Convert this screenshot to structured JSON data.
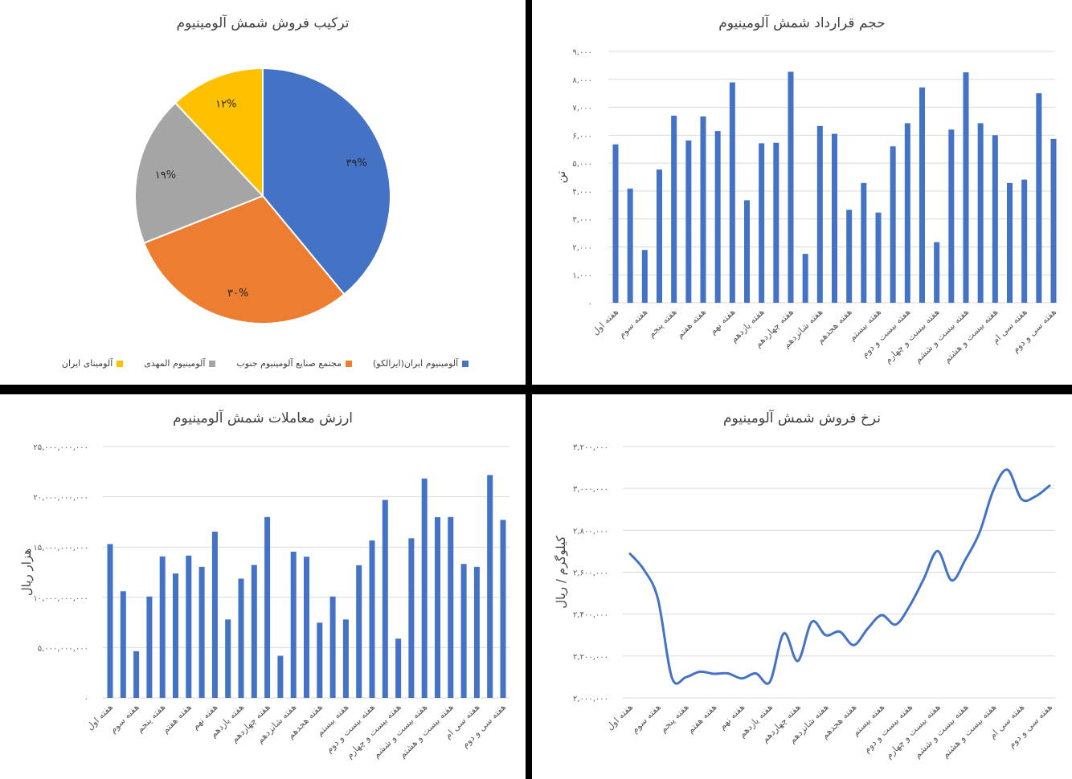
{
  "colors": {
    "bar": "#4472C4",
    "grid": "#D9D9D9",
    "text": "#595959",
    "title": "#404040",
    "background": "#000000",
    "panel": "#FFFFFF"
  },
  "chart_data": [
    {
      "id": "pie",
      "type": "pie",
      "title": "ترکیب فروش شمش آلومینیوم",
      "legend_position": "bottom",
      "slices": [
        {
          "name": "آلومینیوم ایران(ایرالکو)",
          "value": 39,
          "label": "۳۹%",
          "color": "#4472C4"
        },
        {
          "name": "مجتمع صنایع آلومینیوم جنوب",
          "value": 30,
          "label": "۳۰%",
          "color": "#ED7D31"
        },
        {
          "name": "آلومینیوم المهدی",
          "value": 19,
          "label": "۱۹%",
          "color": "#A5A5A5"
        },
        {
          "name": "آلومینای ایران",
          "value": 12,
          "label": "۱۲%",
          "color": "#FFC000"
        }
      ]
    },
    {
      "id": "volume",
      "type": "bar",
      "title": "حجم قرارداد شمش آلومینیوم",
      "ylabel": "تن",
      "ylim": [
        0,
        9000
      ],
      "grid": true,
      "yticks": [
        "۰",
        "۱,۰۰۰",
        "۲,۰۰۰",
        "۳,۰۰۰",
        "۴,۰۰۰",
        "۵,۰۰۰",
        "۶,۰۰۰",
        "۷,۰۰۰",
        "۸,۰۰۰",
        "۹,۰۰۰"
      ],
      "values": [
        5670,
        4090,
        1890,
        4770,
        6700,
        5810,
        6670,
        6150,
        7890,
        3670,
        5710,
        5730,
        8270,
        1750,
        6330,
        6050,
        3330,
        4290,
        3230,
        5600,
        6430,
        7710,
        2170,
        6200,
        8250,
        6430,
        6000,
        4290,
        4410,
        7500,
        5870
      ]
    },
    {
      "id": "value",
      "type": "bar",
      "title": "ارزش معاملات شمش آلومینیوم",
      "ylabel": "هزار ریال",
      "ylim": [
        0,
        25000000000
      ],
      "grid": true,
      "yticks": [
        "۰",
        "۵,۰۰۰,۰۰۰,۰۰۰",
        "۱۰,۰۰۰,۰۰۰,۰۰۰",
        "۱۵,۰۰۰,۰۰۰,۰۰۰",
        "۲۰,۰۰۰,۰۰۰,۰۰۰",
        "۲۵,۰۰۰,۰۰۰,۰۰۰"
      ],
      "values": [
        15300000000,
        10600000000,
        4640000000,
        10080000000,
        14070000000,
        12370000000,
        14150000000,
        13030000000,
        16530000000,
        7800000000,
        11860000000,
        13220000000,
        17990000000,
        4190000000,
        14540000000,
        14040000000,
        7480000000,
        10080000000,
        7800000000,
        13190000000,
        15660000000,
        19690000000,
        5890000000,
        15870000000,
        21820000000,
        17970000000,
        17990000000,
        13320000000,
        13030000000,
        22160000000,
        17700000000
      ]
    },
    {
      "id": "price",
      "type": "line",
      "title": "نرخ فروش شمش آلومینیوم",
      "ylabel": "کیلوگرم / ریال",
      "ylim": [
        2000000,
        3200000
      ],
      "grid": true,
      "yticks": [
        "۲,۰۰۰,۰۰۰",
        "۲,۲۰۰,۰۰۰",
        "۲,۴۰۰,۰۰۰",
        "۲,۶۰۰,۰۰۰",
        "۲,۸۰۰,۰۰۰",
        "۳,۰۰۰,۰۰۰",
        "۳,۲۰۰,۰۰۰"
      ],
      "values": [
        2688000,
        2611000,
        2471000,
        2096000,
        2099000,
        2125000,
        2115000,
        2117000,
        2093000,
        2117000,
        2076000,
        2308000,
        2176000,
        2363000,
        2299000,
        2316000,
        2252000,
        2331000,
        2395000,
        2350000,
        2439000,
        2567000,
        2701000,
        2561000,
        2662000,
        2790000,
        2994000,
        3089000,
        2949000,
        2962000,
        3013000
      ]
    }
  ],
  "categories": [
    "هفته اول",
    "",
    "هفته سوم",
    "",
    "هفته پنجم",
    "",
    "هفته هفتم",
    "",
    "هفته نهم",
    "",
    "هفته یازدهم",
    "",
    "هفته چهاردهم",
    "",
    "هفته شانزدهم",
    "",
    "هفته هجدهم",
    "",
    "هفته بیستم",
    "",
    "هفته بیست و دوم",
    "",
    "هفته بیست و چهارم",
    "",
    "هفته بیست و ششم",
    "",
    "هفته بیست و هشتم",
    "",
    "هفته سی ام",
    "",
    "هفته سی و دوم"
  ]
}
